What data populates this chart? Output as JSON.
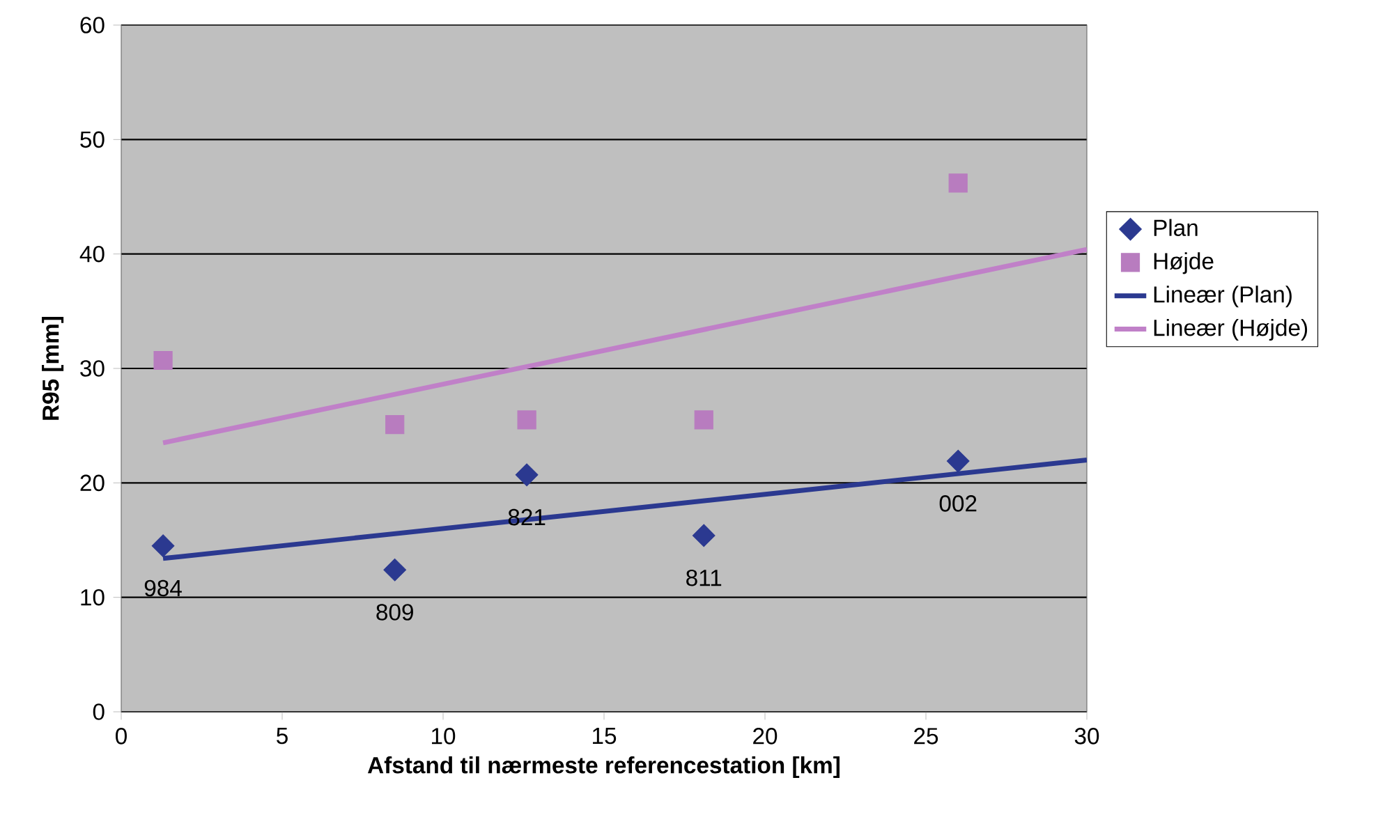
{
  "chart_data": {
    "type": "scatter",
    "xlabel": "Afstand til nærmeste referencestation [km]",
    "ylabel": "R95 [mm]",
    "xlim": [
      0,
      30
    ],
    "ylim": [
      0,
      60
    ],
    "xticks": [
      0,
      5,
      10,
      15,
      20,
      25,
      30
    ],
    "yticks": [
      0,
      10,
      20,
      30,
      40,
      50,
      60
    ],
    "grid": "y",
    "legend": "right",
    "series": [
      {
        "name": "Plan",
        "marker": "diamond",
        "color": "#2b3990",
        "x": [
          1.3,
          8.5,
          12.6,
          18.1,
          26.0
        ],
        "values": [
          14.5,
          12.4,
          20.7,
          15.4,
          21.9
        ]
      },
      {
        "name": "Højde",
        "marker": "square",
        "color": "#b87cbf",
        "x": [
          1.3,
          8.5,
          12.6,
          18.1,
          26.0
        ],
        "values": [
          30.7,
          25.1,
          25.5,
          25.5,
          46.2
        ]
      },
      {
        "name": "Lineær (Plan)",
        "type": "line",
        "color": "#2b3990",
        "x": [
          1.3,
          30
        ],
        "values": [
          13.4,
          22.0
        ]
      },
      {
        "name": "Lineær (Højde)",
        "type": "line",
        "color": "#c080c8",
        "x": [
          1.3,
          30
        ],
        "values": [
          23.5,
          40.4
        ]
      }
    ],
    "annotations": [
      {
        "text": "984",
        "x": 1.3,
        "y": 14.5
      },
      {
        "text": "809",
        "x": 8.5,
        "y": 12.4
      },
      {
        "text": "821",
        "x": 12.6,
        "y": 20.7
      },
      {
        "text": "811",
        "x": 18.1,
        "y": 15.4
      },
      {
        "text": "002",
        "x": 26.0,
        "y": 21.9
      }
    ]
  }
}
